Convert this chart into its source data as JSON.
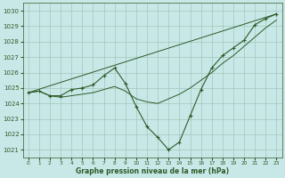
{
  "title": "Graphe pression niveau de la mer (hPa)",
  "bg_color": "#c8e8e8",
  "grid_color": "#a0c8b8",
  "line_color": "#2d5a27",
  "xlim": [
    -0.5,
    23.5
  ],
  "ylim": [
    1020.5,
    1030.5
  ],
  "yticks": [
    1021,
    1022,
    1023,
    1024,
    1025,
    1026,
    1027,
    1028,
    1029,
    1030
  ],
  "xticks": [
    0,
    1,
    2,
    3,
    4,
    5,
    6,
    7,
    8,
    9,
    10,
    11,
    12,
    13,
    14,
    15,
    16,
    17,
    18,
    19,
    20,
    21,
    22,
    23
  ],
  "series_dip_x": [
    0,
    1,
    2,
    3,
    4,
    5,
    6,
    7,
    8,
    9,
    10,
    11,
    12,
    13,
    14,
    15,
    16,
    17,
    18,
    19,
    20,
    21,
    22,
    23
  ],
  "series_dip_y": [
    1024.7,
    1024.8,
    1024.5,
    1024.5,
    1024.9,
    1025.0,
    1025.2,
    1025.8,
    1026.3,
    1025.3,
    1023.8,
    1022.5,
    1021.8,
    1021.0,
    1021.5,
    1023.2,
    1024.9,
    1026.3,
    1027.1,
    1027.6,
    1028.1,
    1029.1,
    1029.5,
    1029.8
  ],
  "series_flat_x": [
    0,
    1,
    2,
    3,
    4,
    5,
    6,
    7,
    8,
    9,
    10,
    11,
    12,
    13,
    14,
    15,
    16,
    17,
    18,
    19,
    20,
    21,
    22,
    23
  ],
  "series_flat_y": [
    1024.7,
    1024.8,
    1024.5,
    1024.4,
    1024.5,
    1024.6,
    1024.7,
    1024.9,
    1025.1,
    1024.8,
    1024.3,
    1024.1,
    1024.0,
    1024.3,
    1024.6,
    1025.0,
    1025.5,
    1026.0,
    1026.6,
    1027.1,
    1027.7,
    1028.3,
    1028.9,
    1029.4
  ],
  "series_line_x": [
    0,
    23
  ],
  "series_line_y": [
    1024.7,
    1029.8
  ]
}
